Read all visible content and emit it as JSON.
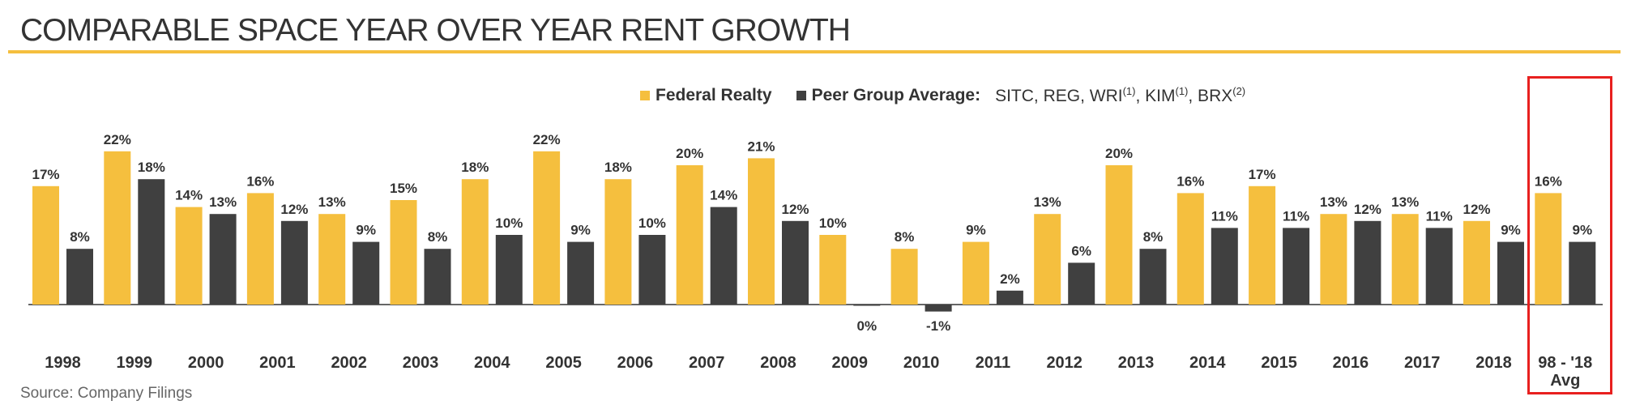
{
  "title": "COMPARABLE SPACE YEAR OVER YEAR RENT GROWTH",
  "source": "Source: Company Filings",
  "colors": {
    "federal": "#f5bf3e",
    "peer": "#404040",
    "accent": "#f5bf3e",
    "highlight": "#e8201f"
  },
  "legend": {
    "federal_label": "Federal Realty",
    "peer_label": "Peer Group Average:",
    "peer_members": {
      "sitc_reg_wri": "SITC, REG, WRI",
      "wri_note": "(1)",
      "kim": ", KIM",
      "kim_note": "(1)",
      "brx": ", BRX",
      "brx_note": "(2)"
    }
  },
  "chart_data": {
    "type": "bar",
    "categories": [
      "1998",
      "1999",
      "2000",
      "2001",
      "2002",
      "2003",
      "2004",
      "2005",
      "2006",
      "2007",
      "2008",
      "2009",
      "2010",
      "2011",
      "2012",
      "2013",
      "2014",
      "2015",
      "2016",
      "2017",
      "2018",
      "98 - '18 Avg"
    ],
    "category_lines": [
      [
        "1998"
      ],
      [
        "1999"
      ],
      [
        "2000"
      ],
      [
        "2001"
      ],
      [
        "2002"
      ],
      [
        "2003"
      ],
      [
        "2004"
      ],
      [
        "2005"
      ],
      [
        "2006"
      ],
      [
        "2007"
      ],
      [
        "2008"
      ],
      [
        "2009"
      ],
      [
        "2010"
      ],
      [
        "2011"
      ],
      [
        "2012"
      ],
      [
        "2013"
      ],
      [
        "2014"
      ],
      [
        "2015"
      ],
      [
        "2016"
      ],
      [
        "2017"
      ],
      [
        "2018"
      ],
      [
        "98 - '18",
        "Avg"
      ]
    ],
    "series": [
      {
        "name": "Federal Realty",
        "values": [
          17,
          22,
          14,
          16,
          13,
          15,
          18,
          22,
          18,
          20,
          21,
          10,
          8,
          9,
          13,
          20,
          16,
          17,
          13,
          13,
          12,
          16
        ]
      },
      {
        "name": "Peer Group Average",
        "values": [
          8,
          18,
          13,
          12,
          9,
          8,
          10,
          9,
          10,
          14,
          12,
          0,
          -1,
          2,
          6,
          8,
          11,
          11,
          12,
          11,
          9,
          9
        ]
      }
    ],
    "value_suffix": "%",
    "highlighted_category": "98 - '18 Avg",
    "legend_position": "top",
    "grid": false,
    "ylim": [
      -1,
      22
    ]
  }
}
